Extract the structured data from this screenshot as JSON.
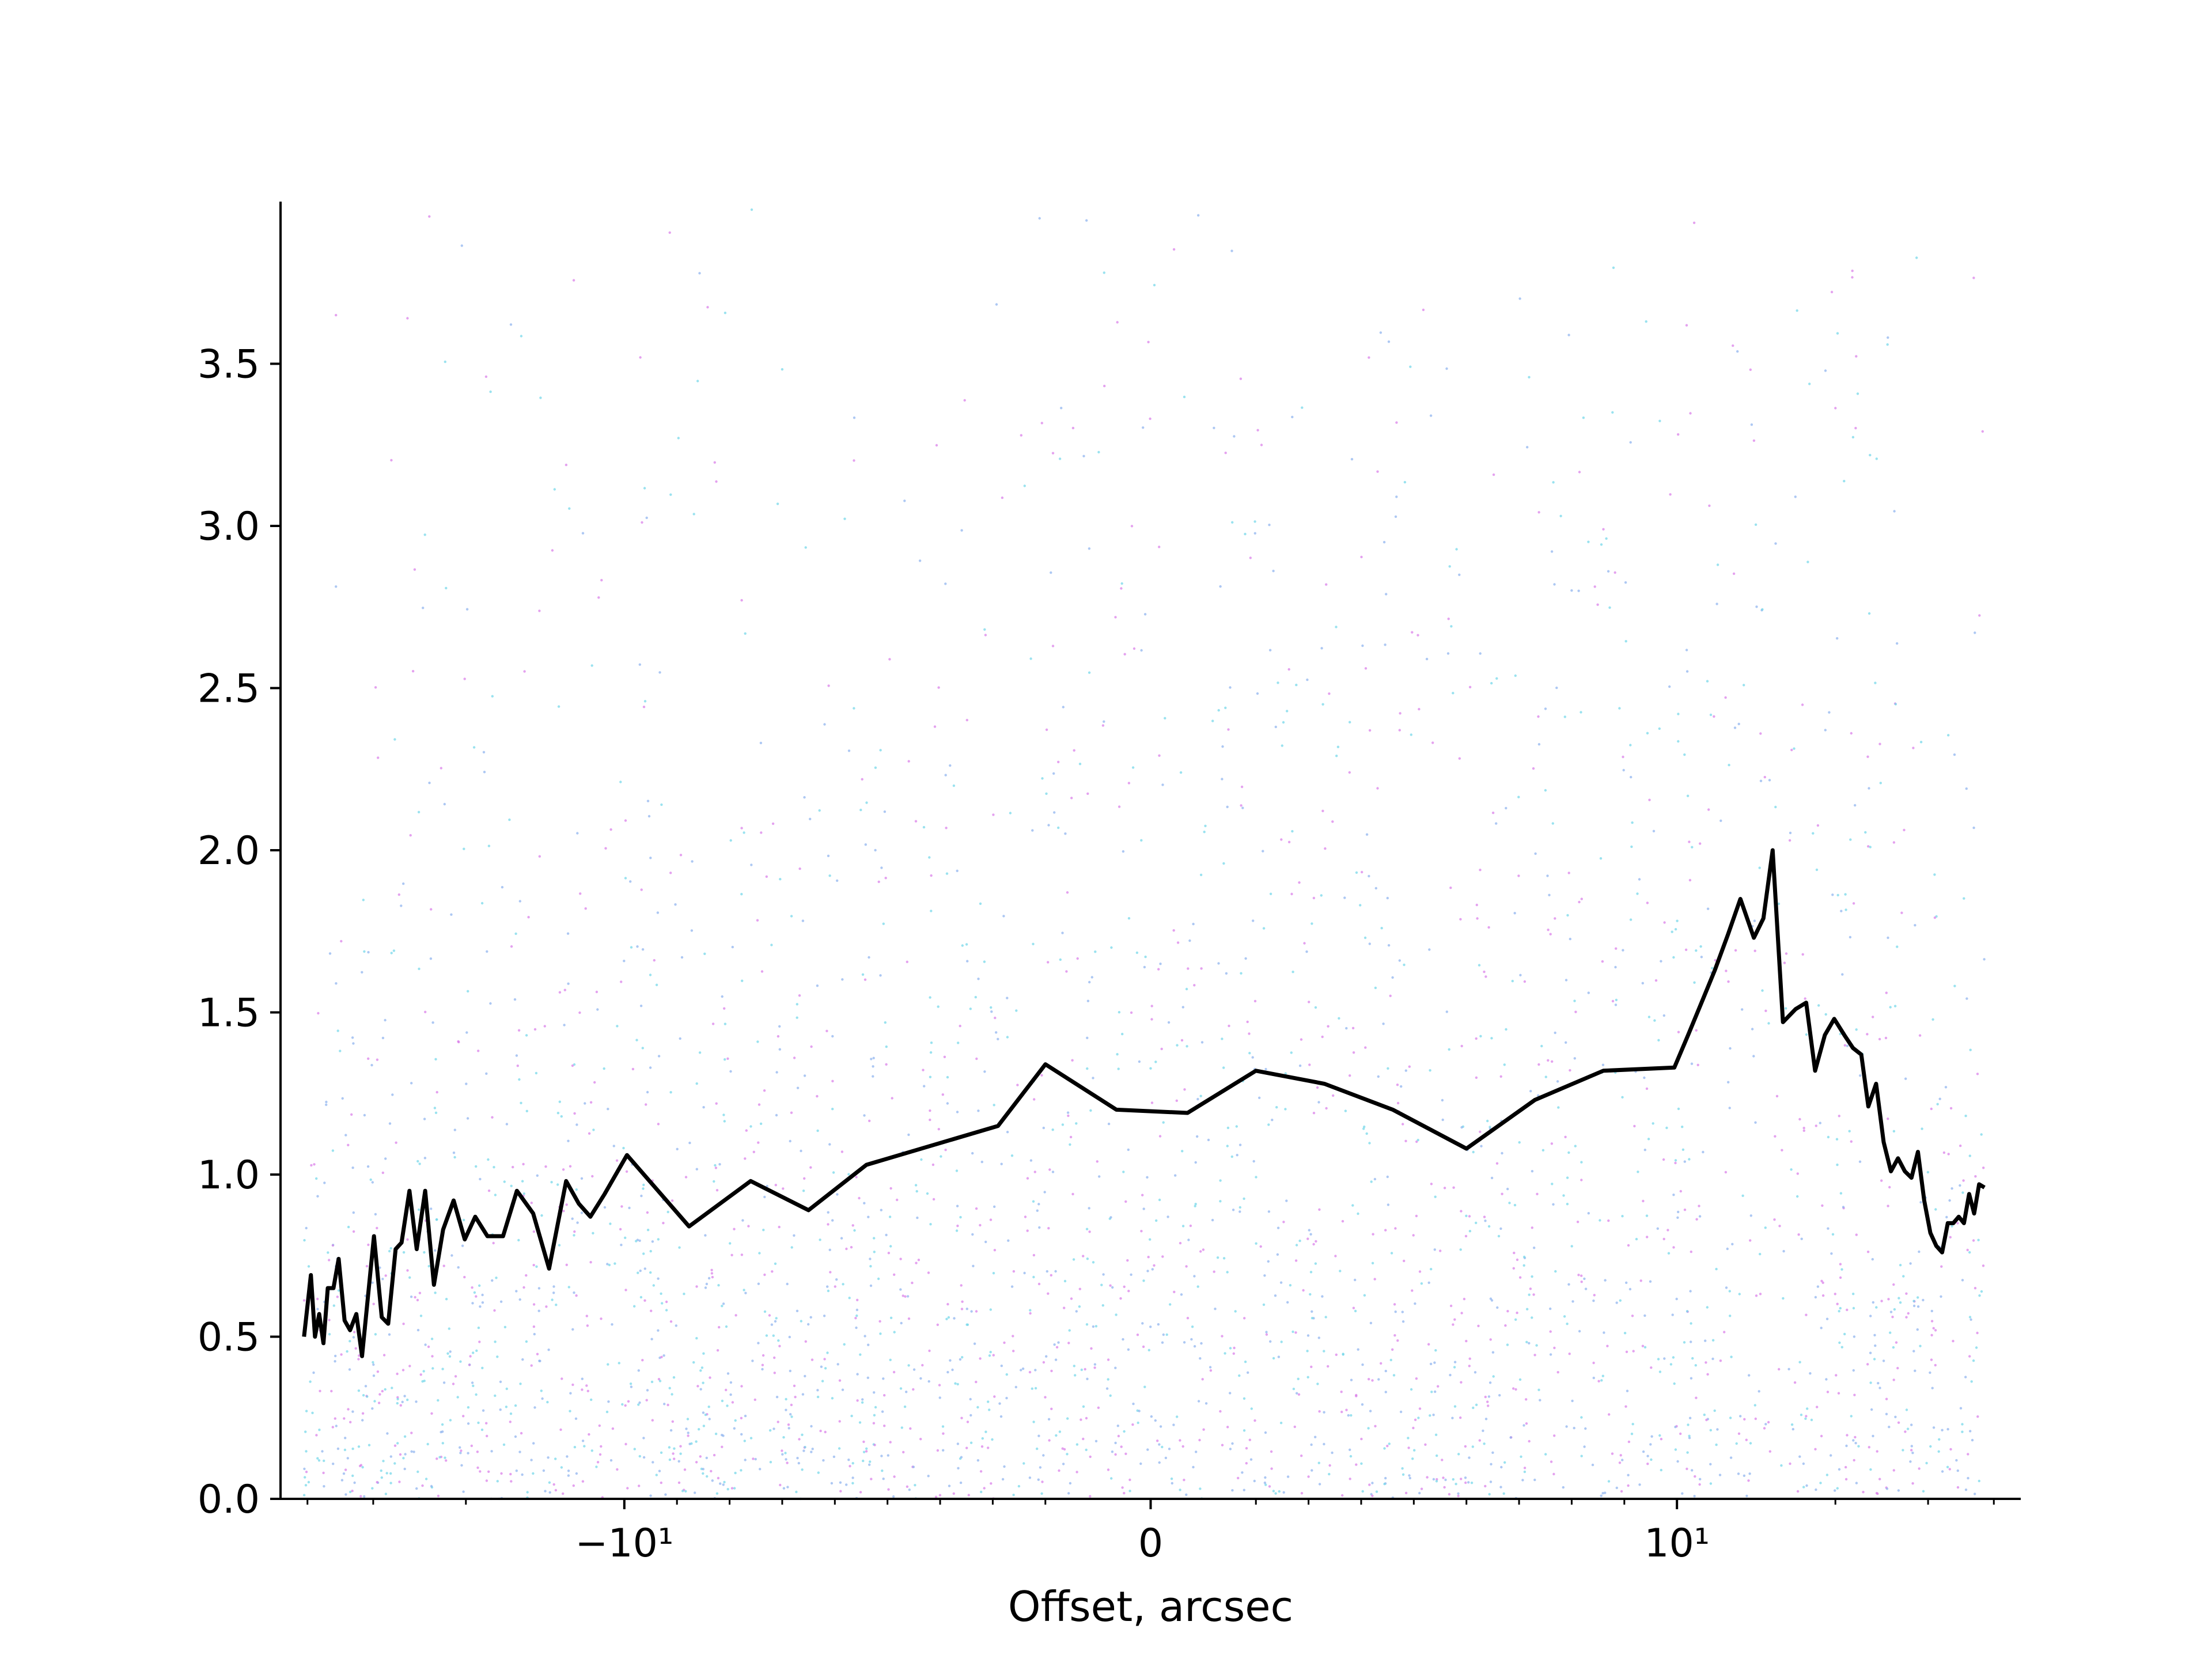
{
  "chart_data": {
    "type": "line",
    "title": "",
    "xlabel": "Offset, arcsec",
    "ylabel": "",
    "x_scale": "symlog",
    "x_linthresh": 10,
    "xlim": [
      -45,
      45
    ],
    "ylim": [
      0,
      4
    ],
    "grid": false,
    "legend": "none",
    "x_ticks": [
      {
        "value": -10,
        "label": "−10¹"
      },
      {
        "value": 0,
        "label": "0"
      },
      {
        "value": 10,
        "label": "10¹"
      }
    ],
    "y_ticks": [
      {
        "value": 0.0,
        "label": "0.0"
      },
      {
        "value": 0.5,
        "label": "0.5"
      },
      {
        "value": 1.0,
        "label": "1.0"
      },
      {
        "value": 1.5,
        "label": "1.5"
      },
      {
        "value": 2.0,
        "label": "2.0"
      },
      {
        "value": 2.5,
        "label": "2.5"
      },
      {
        "value": 3.0,
        "label": "3.0"
      },
      {
        "value": 3.5,
        "label": "3.5"
      }
    ],
    "line_color": "#000000",
    "scatter_colors": [
      "#d97ae8",
      "#6fd6e8",
      "#8ab0ee"
    ],
    "series": [
      {
        "values": [
          {
            "x": -40.6,
            "y": 0.5
          },
          {
            "x": -39.4,
            "y": 0.69
          },
          {
            "x": -38.7,
            "y": 0.5
          },
          {
            "x": -38.0,
            "y": 0.57
          },
          {
            "x": -37.3,
            "y": 0.48
          },
          {
            "x": -36.6,
            "y": 0.65
          },
          {
            "x": -35.7,
            "y": 0.65
          },
          {
            "x": -34.9,
            "y": 0.74
          },
          {
            "x": -34.0,
            "y": 0.55
          },
          {
            "x": -33.2,
            "y": 0.52
          },
          {
            "x": -32.3,
            "y": 0.57
          },
          {
            "x": -31.5,
            "y": 0.44
          },
          {
            "x": -29.9,
            "y": 0.81
          },
          {
            "x": -28.9,
            "y": 0.56
          },
          {
            "x": -28.1,
            "y": 0.54
          },
          {
            "x": -27.2,
            "y": 0.77
          },
          {
            "x": -26.5,
            "y": 0.79
          },
          {
            "x": -25.6,
            "y": 0.95
          },
          {
            "x": -24.8,
            "y": 0.77
          },
          {
            "x": -23.9,
            "y": 0.95
          },
          {
            "x": -23.0,
            "y": 0.66
          },
          {
            "x": -22.1,
            "y": 0.83
          },
          {
            "x": -21.1,
            "y": 0.92
          },
          {
            "x": -20.1,
            "y": 0.8
          },
          {
            "x": -19.2,
            "y": 0.87
          },
          {
            "x": -18.2,
            "y": 0.81
          },
          {
            "x": -17.0,
            "y": 0.81
          },
          {
            "x": -16.0,
            "y": 0.95
          },
          {
            "x": -14.9,
            "y": 0.88
          },
          {
            "x": -13.9,
            "y": 0.71
          },
          {
            "x": -12.9,
            "y": 0.98
          },
          {
            "x": -12.2,
            "y": 0.91
          },
          {
            "x": -11.6,
            "y": 0.87
          },
          {
            "x": -10.9,
            "y": 0.94
          },
          {
            "x": -9.95,
            "y": 1.06
          },
          {
            "x": -8.77,
            "y": 0.84
          },
          {
            "x": -7.6,
            "y": 0.98
          },
          {
            "x": -6.5,
            "y": 0.89
          },
          {
            "x": -5.4,
            "y": 1.03
          },
          {
            "x": -2.9,
            "y": 1.15
          },
          {
            "x": -2.0,
            "y": 1.34
          },
          {
            "x": -0.65,
            "y": 1.2
          },
          {
            "x": 0.7,
            "y": 1.19
          },
          {
            "x": 2.0,
            "y": 1.32
          },
          {
            "x": 3.3,
            "y": 1.28
          },
          {
            "x": 4.6,
            "y": 1.2
          },
          {
            "x": 6.0,
            "y": 1.08
          },
          {
            "x": 7.3,
            "y": 1.23
          },
          {
            "x": 8.6,
            "y": 1.32
          },
          {
            "x": 9.95,
            "y": 1.33
          },
          {
            "x": 10.5,
            "y": 1.43
          },
          {
            "x": 11.2,
            "y": 1.54
          },
          {
            "x": 11.8,
            "y": 1.63
          },
          {
            "x": 12.5,
            "y": 1.74
          },
          {
            "x": 13.2,
            "y": 1.85
          },
          {
            "x": 14.0,
            "y": 1.73
          },
          {
            "x": 14.6,
            "y": 1.79
          },
          {
            "x": 15.2,
            "y": 2.0
          },
          {
            "x": 15.9,
            "y": 1.47
          },
          {
            "x": 16.8,
            "y": 1.51
          },
          {
            "x": 17.6,
            "y": 1.53
          },
          {
            "x": 18.3,
            "y": 1.32
          },
          {
            "x": 19.1,
            "y": 1.43
          },
          {
            "x": 19.9,
            "y": 1.48
          },
          {
            "x": 20.8,
            "y": 1.43
          },
          {
            "x": 21.6,
            "y": 1.39
          },
          {
            "x": 22.4,
            "y": 1.37
          },
          {
            "x": 23.1,
            "y": 1.21
          },
          {
            "x": 23.9,
            "y": 1.28
          },
          {
            "x": 24.7,
            "y": 1.1
          },
          {
            "x": 25.5,
            "y": 1.01
          },
          {
            "x": 26.3,
            "y": 1.05
          },
          {
            "x": 27.1,
            "y": 1.01
          },
          {
            "x": 27.9,
            "y": 0.99
          },
          {
            "x": 28.7,
            "y": 1.07
          },
          {
            "x": 29.5,
            "y": 0.92
          },
          {
            "x": 30.3,
            "y": 0.82
          },
          {
            "x": 31.1,
            "y": 0.78
          },
          {
            "x": 31.9,
            "y": 0.76
          },
          {
            "x": 32.7,
            "y": 0.85
          },
          {
            "x": 33.5,
            "y": 0.85
          },
          {
            "x": 34.3,
            "y": 0.87
          },
          {
            "x": 35.1,
            "y": 0.85
          },
          {
            "x": 35.9,
            "y": 0.94
          },
          {
            "x": 36.7,
            "y": 0.88
          },
          {
            "x": 37.5,
            "y": 0.97
          },
          {
            "x": 38.4,
            "y": 0.96
          }
        ]
      }
    ]
  }
}
